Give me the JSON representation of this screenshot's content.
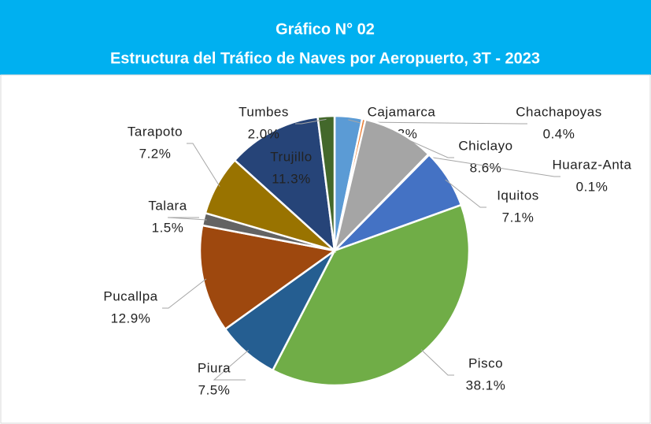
{
  "chart_data": {
    "type": "pie",
    "title": "Gráfico N° 02",
    "subtitle": "Estructura del Tráfico de Naves por Aeropuerto, 3T - 2023",
    "categories": [
      "Cajamarca",
      "Chachapoyas",
      "Chiclayo",
      "Huaraz-Anta",
      "Iquitos",
      "Pisco",
      "Piura",
      "Pucallpa",
      "Talara",
      "Tarapoto",
      "Trujillo",
      "Tumbes"
    ],
    "values": [
      3.3,
      0.4,
      8.6,
      0.1,
      7.1,
      38.1,
      7.5,
      12.9,
      1.5,
      7.2,
      11.3,
      2.0
    ],
    "value_labels": [
      "3.3%",
      "0.4%",
      "8.6%",
      "0.1%",
      "7.1%",
      "38.1%",
      "7.5%",
      "12.9%",
      "1.5%",
      "7.2%",
      "11.3%",
      "2.0%"
    ],
    "colors": [
      "#5B9BD5",
      "#ED7D31",
      "#A5A5A5",
      "#FFC000",
      "#4472C4",
      "#70AD47",
      "#255E91",
      "#9E480E",
      "#636363",
      "#997300",
      "#264478",
      "#43682B"
    ]
  }
}
